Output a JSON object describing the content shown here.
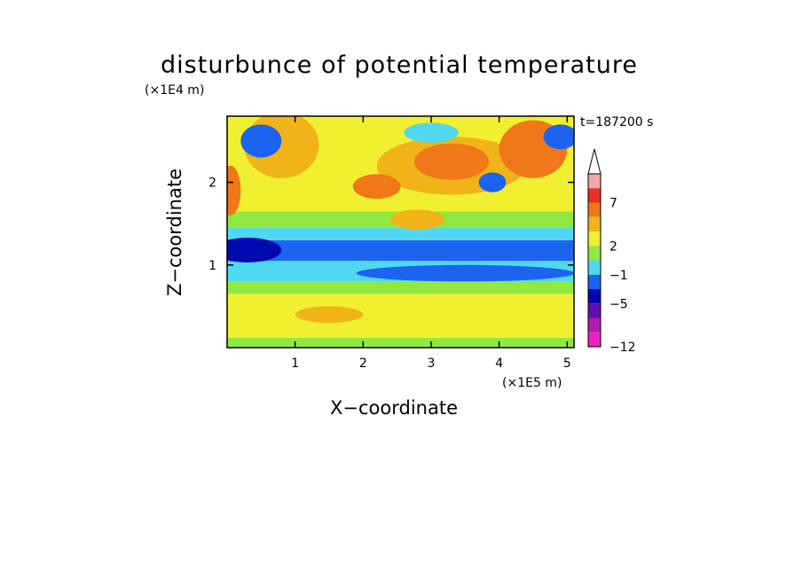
{
  "chart_data": {
    "type": "heatmap",
    "title": "disturbunce of potential temperature",
    "xlabel": "X−coordinate",
    "ylabel": "Z−coordinate",
    "x_unit": "(×1E5 m)",
    "y_unit": "(×1E4 m)",
    "time_label": "t=187200 s",
    "xlim": [
      0,
      5.1
    ],
    "ylim": [
      0,
      2.8
    ],
    "x_ticks": [
      "1",
      "2",
      "3",
      "4",
      "5"
    ],
    "x_tick_values": [
      1,
      2,
      3,
      4,
      5
    ],
    "y_ticks": [
      "1",
      "2"
    ],
    "y_tick_values": [
      1,
      2
    ],
    "colorbar": {
      "extend": "max",
      "labels": [
        "7",
        "2",
        "−1",
        "−5",
        "−12"
      ],
      "label_levels": [
        7,
        2,
        -1,
        -5,
        -12
      ],
      "colors": [
        "#f0a8a8",
        "#e83028",
        "#f07818",
        "#f0b418",
        "#f0f030",
        "#90e840",
        "#50d8f0",
        "#1c64f0",
        "#0008b0",
        "#6010b0",
        "#b01cb0",
        "#f020c0"
      ]
    },
    "bands": [
      {
        "z_range": [
          0,
          0.12
        ],
        "color": "#90e840"
      },
      {
        "z_range": [
          0.12,
          0.65
        ],
        "color": "#f0f030"
      },
      {
        "z_range": [
          0.65,
          0.8
        ],
        "color": "#90e840"
      },
      {
        "z_range": [
          0.8,
          1.05
        ],
        "color": "#50d8f0"
      },
      {
        "z_range": [
          1.05,
          1.3
        ],
        "color": "#1c64f0"
      },
      {
        "z_range": [
          1.3,
          1.45
        ],
        "color": "#50d8f0"
      },
      {
        "z_range": [
          1.45,
          1.65
        ],
        "color": "#90e840"
      },
      {
        "z_range": [
          1.65,
          2.8
        ],
        "color": "#f0f030"
      }
    ],
    "features": [
      {
        "x": 3.3,
        "z": 2.2,
        "rx": 1.1,
        "rz": 0.35,
        "color": "#f0b418"
      },
      {
        "x": 3.3,
        "z": 2.25,
        "rx": 0.55,
        "rz": 0.22,
        "color": "#f07818"
      },
      {
        "x": 2.2,
        "z": 1.95,
        "rx": 0.35,
        "rz": 0.15,
        "color": "#f07818"
      },
      {
        "x": 3.9,
        "z": 2.0,
        "rx": 0.2,
        "rz": 0.12,
        "color": "#1c64f0"
      },
      {
        "x": 0.8,
        "z": 2.45,
        "rx": 0.55,
        "rz": 0.4,
        "color": "#f0b418"
      },
      {
        "x": 0.5,
        "z": 2.5,
        "rx": 0.3,
        "rz": 0.2,
        "color": "#1c64f0"
      },
      {
        "x": 2.8,
        "z": 1.55,
        "rx": 0.4,
        "rz": 0.12,
        "color": "#f0b418"
      },
      {
        "x": 4.5,
        "z": 2.4,
        "rx": 0.5,
        "rz": 0.35,
        "color": "#f07818"
      },
      {
        "x": 0.05,
        "z": 1.9,
        "rx": 0.15,
        "rz": 0.3,
        "color": "#f07818"
      },
      {
        "x": 3.5,
        "z": 0.9,
        "rx": 1.6,
        "rz": 0.1,
        "color": "#1c64f0"
      },
      {
        "x": 0.3,
        "z": 1.18,
        "rx": 0.5,
        "rz": 0.15,
        "color": "#0008b0"
      },
      {
        "x": 1.5,
        "z": 0.4,
        "rx": 0.5,
        "rz": 0.1,
        "color": "#f0b418"
      },
      {
        "x": 3.0,
        "z": 2.6,
        "rx": 0.4,
        "rz": 0.12,
        "color": "#50d8f0"
      },
      {
        "x": 4.9,
        "z": 2.55,
        "rx": 0.25,
        "rz": 0.15,
        "color": "#1c64f0"
      }
    ]
  }
}
